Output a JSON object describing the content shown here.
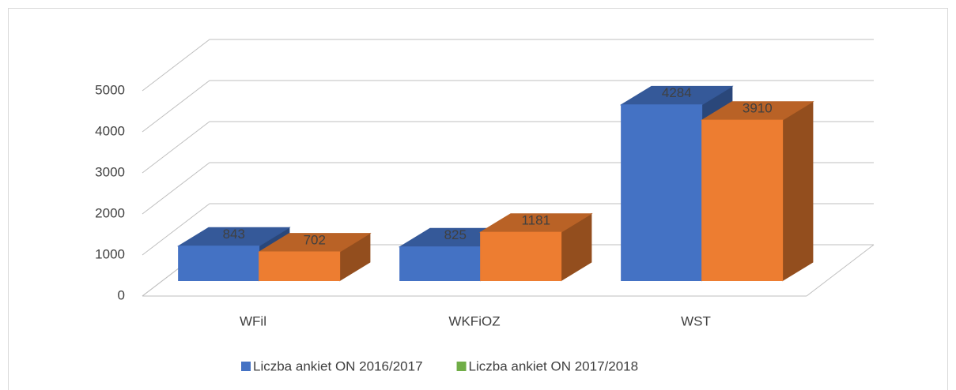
{
  "chart_data": {
    "type": "bar3d",
    "categories": [
      "WFil",
      "WKFiOZ",
      "WST"
    ],
    "series": [
      {
        "name": "Liczba ankiet ON 2016/2017",
        "color": "#4472c4",
        "legend_color": "#4472c4",
        "values": [
          843,
          825,
          4284
        ]
      },
      {
        "name": "Liczba ankiet ON 2017/2018",
        "color": "#ed7d31",
        "legend_color": "#70ad47",
        "values": [
          702,
          1181,
          3910
        ]
      }
    ],
    "ylim": [
      0,
      5000
    ],
    "yticks": [
      0,
      1000,
      2000,
      3000,
      4000,
      5000
    ],
    "grid": true
  }
}
